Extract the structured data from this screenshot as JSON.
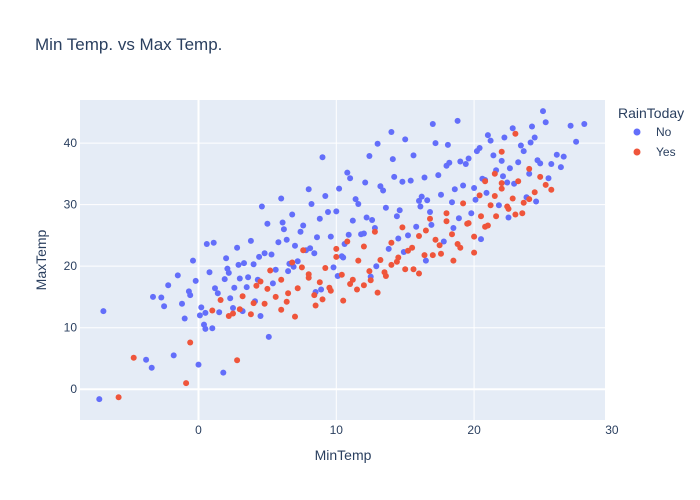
{
  "chart_data": {
    "type": "scatter",
    "title": "Min Temp. vs Max Temp.",
    "xlabel": "MinTemp",
    "ylabel": "MaxTemp",
    "xlim": [
      -8.6,
      29.5
    ],
    "ylim": [
      -5,
      47
    ],
    "x_ticks": [
      0,
      10,
      20,
      30
    ],
    "y_ticks": [
      0,
      10,
      20,
      30,
      40
    ],
    "grid": true,
    "legend": {
      "title": "RainToday",
      "placement": "top-right"
    },
    "series": [
      {
        "name": "No",
        "color": "#636efa",
        "x": [
          -7.2,
          -6.9,
          -3.8,
          -3.4,
          -3.3,
          -2.7,
          -2.5,
          -2.2,
          -1.8,
          -1.5,
          -1.2,
          -1.0,
          -0.7,
          -0.4,
          -0.2,
          0.0,
          0.2,
          0.4,
          0.6,
          0.8,
          1.0,
          1.2,
          1.5,
          1.8,
          2.0,
          2.2,
          2.5,
          2.8,
          3.0,
          3.3,
          3.5,
          3.8,
          4.0,
          4.3,
          4.6,
          5.0,
          5.3,
          5.6,
          6.0,
          6.4,
          6.8,
          7.2,
          7.6,
          8.0,
          8.4,
          8.8,
          9.2,
          9.6,
          10.0,
          10.4,
          10.8,
          11.2,
          11.6,
          12.0,
          12.4,
          12.8,
          13.2,
          13.6,
          14.0,
          14.4,
          14.8,
          15.2,
          15.6,
          16.0,
          16.4,
          16.8,
          17.2,
          17.6,
          18.0,
          18.4,
          18.8,
          19.2,
          19.6,
          20.0,
          20.4,
          20.8,
          21.2,
          21.6,
          22.0,
          22.4,
          22.8,
          23.2,
          23.6,
          24.0,
          24.4,
          24.8,
          25.2,
          25.6,
          26.0,
          26.5,
          27.0,
          27.4,
          28.0,
          -0.6,
          0.1,
          1.4,
          2.6,
          3.6,
          4.8,
          5.8,
          6.6,
          7.4,
          8.6,
          9.4,
          10.6,
          11.4,
          12.6,
          13.4,
          14.6,
          15.4,
          16.6,
          17.4,
          18.6,
          19.4,
          20.6,
          21.4,
          22.6,
          23.4,
          24.6,
          1.9,
          2.9,
          4.4,
          5.4,
          6.2,
          7.8,
          8.2,
          9.8,
          10.2,
          11.8,
          12.2,
          13.8,
          14.2,
          15.8,
          16.2,
          17.8,
          18.2,
          19.8,
          20.2,
          21.8,
          22.2,
          23.8,
          24.2,
          25.4,
          0.5,
          3.2,
          5.1,
          6.9,
          8.9,
          10.9,
          12.9,
          14.9,
          16.9,
          18.9,
          20.9,
          22.9,
          2.1,
          4.1,
          6.1,
          8.1,
          10.1,
          12.1,
          14.1,
          16.1,
          18.1,
          20.1,
          22.1,
          24.1,
          26.3,
          1.1,
          9.0,
          13.0,
          17.0,
          21.0,
          25.0,
          15.0,
          19.0,
          11.0,
          7.0,
          0.5,
          2.3,
          4.5,
          6.5,
          8.5,
          10.5,
          12.5,
          14.5,
          16.5,
          18.5,
          20.5,
          22.5,
          24.5
        ],
        "y": [
          -1.6,
          12.7,
          4.8,
          3.5,
          15.0,
          14.9,
          13.5,
          16.9,
          5.5,
          18.5,
          13.9,
          11.5,
          15.9,
          20.9,
          17.6,
          4.0,
          13.3,
          10.5,
          23.6,
          19.0,
          9.9,
          16.4,
          12.5,
          2.7,
          21.3,
          18.9,
          13.2,
          23.0,
          18.0,
          20.5,
          16.6,
          24.1,
          20.3,
          17.8,
          29.7,
          26.9,
          21.9,
          19.4,
          31.0,
          24.3,
          28.4,
          20.8,
          26.6,
          32.5,
          22.1,
          27.7,
          31.4,
          24.8,
          28.9,
          21.6,
          35.2,
          27.4,
          30.1,
          25.3,
          37.9,
          26.2,
          33.0,
          29.5,
          41.8,
          28.1,
          33.7,
          25.0,
          38.0,
          30.6,
          34.4,
          28.8,
          40.0,
          31.6,
          36.3,
          30.4,
          43.6,
          33.1,
          37.5,
          32.7,
          39.2,
          34.0,
          40.4,
          35.6,
          37.1,
          33.6,
          42.4,
          36.9,
          38.7,
          35.0,
          40.9,
          36.7,
          43.4,
          36.6,
          38.1,
          37.8,
          42.8,
          40.2,
          43.1,
          15.3,
          12.0,
          15.6,
          16.5,
          18.2,
          22.1,
          23.9,
          20.4,
          25.6,
          24.7,
          28.8,
          23.6,
          30.9,
          27.5,
          32.3,
          29.1,
          33.9,
          30.7,
          34.8,
          32.5,
          36.6,
          34.2,
          38.0,
          35.9,
          39.6,
          37.2,
          17.9,
          20.2,
          21.5,
          17.2,
          26.0,
          22.6,
          30.1,
          19.8,
          32.6,
          25.2,
          27.9,
          22.8,
          34.5,
          26.4,
          31.3,
          24.0,
          36.8,
          28.6,
          38.7,
          29.9,
          40.9,
          31.2,
          42.7,
          34.3,
          9.8,
          12.7,
          8.5,
          19.9,
          16.2,
          25.1,
          20.0,
          22.3,
          26.7,
          27.8,
          31.9,
          33.4,
          19.6,
          14.3,
          27.1,
          22.9,
          18.4,
          33.6,
          37.4,
          29.7,
          39.7,
          30.8,
          34.6,
          40.1,
          36.1,
          23.8,
          37.7,
          39.9,
          43.1,
          41.3,
          45.2,
          40.6,
          37.0,
          34.3,
          23.3,
          12.4,
          14.8,
          11.9,
          19.2,
          15.8,
          21.4,
          18.3,
          24.5,
          20.9,
          26.2,
          24.4,
          27.9,
          30.5
        ]
      },
      {
        "name": "Yes",
        "color": "#ef553b",
        "x": [
          -5.8,
          -4.7,
          -0.9,
          -0.6,
          1.0,
          1.6,
          2.2,
          2.8,
          3.2,
          3.8,
          4.2,
          4.8,
          5.2,
          5.6,
          6.0,
          6.4,
          6.8,
          7.2,
          7.6,
          8.0,
          8.4,
          8.8,
          9.2,
          9.6,
          10.0,
          10.4,
          10.8,
          11.2,
          11.6,
          12.0,
          12.4,
          12.8,
          13.2,
          13.6,
          14.0,
          14.4,
          14.8,
          15.2,
          15.6,
          16.0,
          16.4,
          16.8,
          17.2,
          17.6,
          18.0,
          18.4,
          18.8,
          19.2,
          19.6,
          20.0,
          20.4,
          20.8,
          21.2,
          21.6,
          22.0,
          22.4,
          22.8,
          23.2,
          23.6,
          24.0,
          24.4,
          24.8,
          25.2,
          25.6,
          3.0,
          5.0,
          7.0,
          9.0,
          11.0,
          13.0,
          15.0,
          17.0,
          19.0,
          21.0,
          23.0,
          4.0,
          6.0,
          8.0,
          10.0,
          12.0,
          14.0,
          16.0,
          18.0,
          20.0,
          22.0,
          24.0,
          6.5,
          8.5,
          10.5,
          12.5,
          14.5,
          16.5,
          18.5,
          20.5,
          22.5,
          7.5,
          9.5,
          11.5,
          13.5,
          15.5,
          17.5,
          19.5,
          21.5,
          23.5,
          2.5,
          4.5,
          23.0,
          22.0,
          21.5,
          20.8
        ],
        "y": [
          -1.3,
          5.1,
          1.0,
          7.6,
          12.8,
          14.5,
          11.9,
          4.7,
          15.1,
          12.2,
          16.8,
          13.9,
          19.3,
          15.0,
          17.8,
          14.2,
          20.6,
          16.4,
          22.6,
          18.1,
          15.3,
          17.4,
          19.7,
          16.0,
          21.5,
          18.6,
          24.0,
          17.8,
          20.9,
          23.2,
          19.2,
          25.6,
          21.0,
          18.4,
          23.8,
          20.7,
          26.3,
          22.5,
          19.5,
          24.9,
          21.8,
          27.7,
          24.3,
          22.0,
          28.6,
          25.2,
          23.6,
          30.2,
          27.0,
          24.8,
          31.5,
          26.4,
          29.9,
          28.1,
          32.6,
          29.7,
          31.0,
          33.8,
          30.3,
          35.8,
          32.0,
          34.5,
          33.2,
          32.4,
          13.0,
          16.3,
          11.8,
          14.6,
          17.1,
          15.7,
          19.5,
          21.8,
          23.0,
          26.6,
          28.4,
          14.0,
          12.9,
          18.7,
          22.8,
          16.9,
          20.2,
          18.8,
          27.3,
          22.2,
          33.5,
          30.9,
          15.6,
          13.6,
          14.4,
          17.7,
          21.4,
          25.8,
          20.9,
          28.1,
          29.3,
          19.8,
          16.5,
          16.2,
          19.0,
          23.0,
          23.4,
          26.9,
          31.4,
          28.6,
          12.3,
          17.5,
          41.5,
          38.6,
          35.0,
          33.8
        ]
      }
    ]
  }
}
